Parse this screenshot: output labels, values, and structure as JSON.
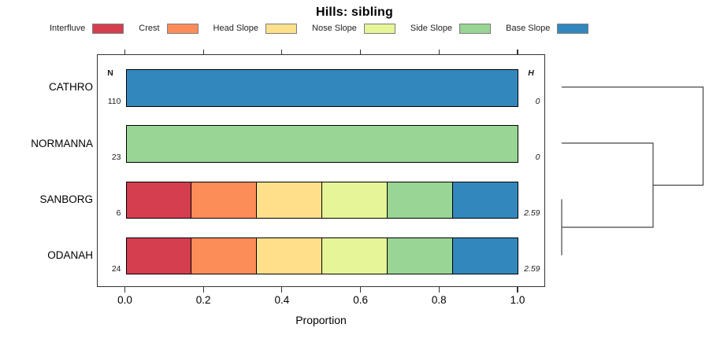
{
  "title": "Hills: sibling",
  "legend": {
    "items": [
      {
        "label": "Interfluve",
        "color": "#d53e4f"
      },
      {
        "label": "Crest",
        "color": "#fc8d59"
      },
      {
        "label": "Head Slope",
        "color": "#fee08b"
      },
      {
        "label": "Nose Slope",
        "color": "#e6f598"
      },
      {
        "label": "Side Slope",
        "color": "#99d594"
      },
      {
        "label": "Base Slope",
        "color": "#3288bd"
      }
    ]
  },
  "chart_data": {
    "type": "bar",
    "orientation": "horizontal",
    "stacked": true,
    "title": "Hills: sibling",
    "xlabel": "Proportion",
    "xlim": [
      0,
      1
    ],
    "xticks": [
      "0.0",
      "0.2",
      "0.4",
      "0.6",
      "0.8",
      "1.0"
    ],
    "grid": false,
    "series_categories": [
      "Interfluve",
      "Crest",
      "Head Slope",
      "Nose Slope",
      "Side Slope",
      "Base Slope"
    ],
    "series_colors": [
      "#d53e4f",
      "#fc8d59",
      "#fee08b",
      "#e6f598",
      "#99d594",
      "#3288bd"
    ],
    "columns": {
      "n_header": "N",
      "h_header": "H"
    },
    "rows": [
      {
        "label": "CATHRO",
        "n": "110",
        "h": "0",
        "proportions": [
          0,
          0,
          0,
          0,
          0,
          1
        ]
      },
      {
        "label": "NORMANNA",
        "n": "23",
        "h": "0",
        "proportions": [
          0,
          0,
          0,
          0,
          1,
          0
        ]
      },
      {
        "label": "SANBORG",
        "n": "6",
        "h": "2.59",
        "proportions": [
          0.1667,
          0.1667,
          0.1667,
          0.1667,
          0.1667,
          0.1665
        ]
      },
      {
        "label": "ODANAH",
        "n": "24",
        "h": "2.59",
        "proportions": [
          0.1667,
          0.1667,
          0.1667,
          0.1667,
          0.1667,
          0.1665
        ]
      }
    ],
    "dendrogram": {
      "position": "right-of-plot",
      "merges": [
        {
          "order": 1,
          "join": [
            "SANBORG",
            "ODANAH"
          ]
        },
        {
          "order": 2,
          "join": [
            "SANBORG+ODANAH",
            "NORMANNA"
          ]
        },
        {
          "order": 3,
          "join": [
            "SANBORG+ODANAH+NORMANNA",
            "CATHRO"
          ]
        }
      ]
    }
  }
}
